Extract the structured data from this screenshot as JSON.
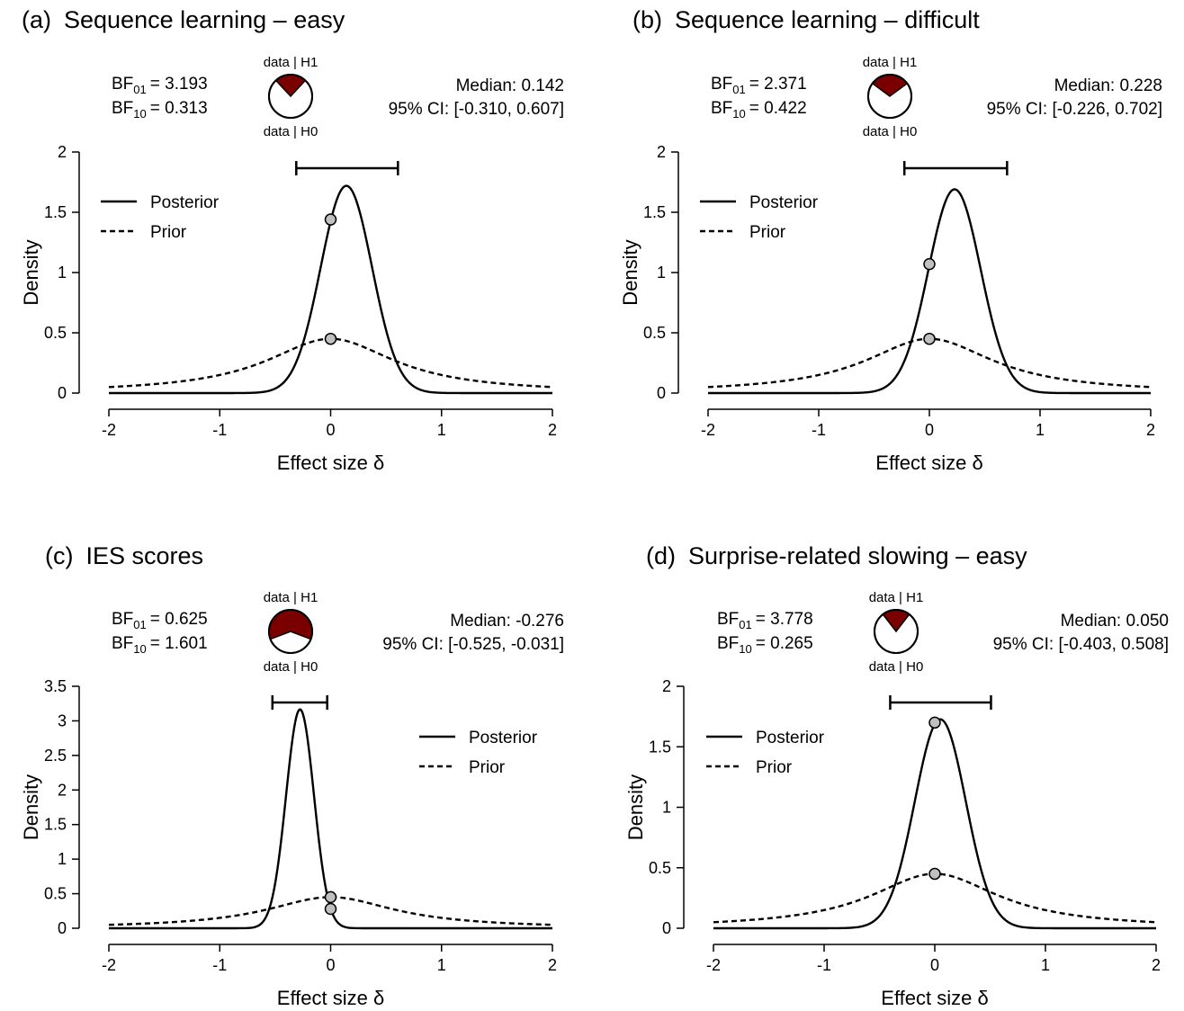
{
  "colors": {
    "pie_h1": "#7a0000",
    "point_fill": "#c0c0c0",
    "line": "#000000"
  },
  "chart_data": [
    {
      "type": "line",
      "panel_label": "(a)",
      "title": "Sequence learning – easy",
      "bf01_label": "BF",
      "bf01_sub": "01",
      "bf01_value": "= 3.193",
      "bf10_label": "BF",
      "bf10_sub": "10",
      "bf10_value": "= 0.313",
      "median_text": "Median: 0.142",
      "ci_text": "95% CI: [-0.310, 0.607]",
      "ci": [
        -0.31,
        0.607
      ],
      "pie_top_label": "data | H1",
      "pie_bottom_label": "data | H0",
      "p_h1": 0.238,
      "xlabel": "Effect size δ",
      "ylabel": "Density",
      "xlim": [
        -2,
        2
      ],
      "ylim": [
        0,
        2
      ],
      "xticks": [
        "-2",
        "-1",
        "0",
        "1",
        "2"
      ],
      "yticks": [
        "0",
        "0.5",
        "1",
        "1.5",
        "2"
      ],
      "legend_position": "top-left",
      "series": [
        {
          "name": "Posterior",
          "style": "solid",
          "dist": "normal",
          "mean": 0.142,
          "sd": 0.232
        },
        {
          "name": "Prior",
          "style": "dashed",
          "dist": "cauchy",
          "location": 0,
          "scale": 0.707
        }
      ],
      "points": [
        {
          "x": 0,
          "y": 1.44
        },
        {
          "x": 0,
          "y": 0.45
        }
      ]
    },
    {
      "type": "line",
      "panel_label": "(b)",
      "title": "Sequence learning – difficult",
      "bf01_label": "BF",
      "bf01_sub": "01",
      "bf01_value": "= 2.371",
      "bf10_label": "BF",
      "bf10_sub": "10",
      "bf10_value": "= 0.422",
      "median_text": "Median: 0.228",
      "ci_text": "95% CI: [-0.226, 0.702]",
      "ci": [
        -0.226,
        0.702
      ],
      "pie_top_label": "data | H1",
      "pie_bottom_label": "data | H0",
      "p_h1": 0.297,
      "xlabel": "Effect size δ",
      "ylabel": "Density",
      "xlim": [
        -2,
        2
      ],
      "ylim": [
        0,
        2
      ],
      "xticks": [
        "-2",
        "-1",
        "0",
        "1",
        "2"
      ],
      "yticks": [
        "0",
        "0.5",
        "1",
        "1.5",
        "2"
      ],
      "legend_position": "top-left",
      "series": [
        {
          "name": "Posterior",
          "style": "solid",
          "dist": "normal",
          "mean": 0.228,
          "sd": 0.236
        },
        {
          "name": "Prior",
          "style": "dashed",
          "dist": "cauchy",
          "location": 0,
          "scale": 0.707
        }
      ],
      "points": [
        {
          "x": 0,
          "y": 1.07
        },
        {
          "x": 0,
          "y": 0.45
        }
      ]
    },
    {
      "type": "line",
      "panel_label": "(c)",
      "title": "IES scores",
      "bf01_label": "BF",
      "bf01_sub": "01",
      "bf01_value": "= 0.625",
      "bf10_label": "BF",
      "bf10_sub": "10",
      "bf10_value": "= 1.601",
      "median_text": "Median: -0.276",
      "ci_text": "95% CI: [-0.525, -0.031]",
      "ci": [
        -0.525,
        -0.031
      ],
      "pie_top_label": "data | H1",
      "pie_bottom_label": "data | H0",
      "p_h1": 0.616,
      "xlabel": "Effect size δ",
      "ylabel": "Density",
      "xlim": [
        -2,
        2
      ],
      "ylim": [
        0,
        3.5
      ],
      "xticks": [
        "-2",
        "-1",
        "0",
        "1",
        "2"
      ],
      "yticks": [
        "0",
        "0.5",
        "1",
        "1.5",
        "2",
        "2.5",
        "3",
        "3.5"
      ],
      "legend_position": "top-right",
      "series": [
        {
          "name": "Posterior",
          "style": "solid",
          "dist": "normal",
          "mean": -0.276,
          "sd": 0.126
        },
        {
          "name": "Prior",
          "style": "dashed",
          "dist": "cauchy",
          "location": 0,
          "scale": 0.707
        }
      ],
      "points": [
        {
          "x": 0,
          "y": 0.45
        },
        {
          "x": 0,
          "y": 0.28
        }
      ]
    },
    {
      "type": "line",
      "panel_label": "(d)",
      "title": "Surprise-related slowing – easy",
      "bf01_label": "BF",
      "bf01_sub": "01",
      "bf01_value": "= 3.778",
      "bf10_label": "BF",
      "bf10_sub": "10",
      "bf10_value": "= 0.265",
      "median_text": "Median: 0.050",
      "ci_text": "95% CI: [-0.403, 0.508]",
      "ci": [
        -0.403,
        0.508
      ],
      "pie_top_label": "data | H1",
      "pie_bottom_label": "data | H0",
      "p_h1": 0.209,
      "xlabel": "Effect size δ",
      "ylabel": "Density",
      "xlim": [
        -2,
        2
      ],
      "ylim": [
        0,
        2
      ],
      "xticks": [
        "-2",
        "-1",
        "0",
        "1",
        "2"
      ],
      "yticks": [
        "0",
        "0.5",
        "1",
        "1.5",
        "2"
      ],
      "legend_position": "top-left",
      "series": [
        {
          "name": "Posterior",
          "style": "solid",
          "dist": "normal",
          "mean": 0.05,
          "sd": 0.231
        },
        {
          "name": "Prior",
          "style": "dashed",
          "dist": "cauchy",
          "location": 0,
          "scale": 0.707
        }
      ],
      "points": [
        {
          "x": 0,
          "y": 1.7
        },
        {
          "x": 0,
          "y": 0.45
        }
      ]
    }
  ]
}
